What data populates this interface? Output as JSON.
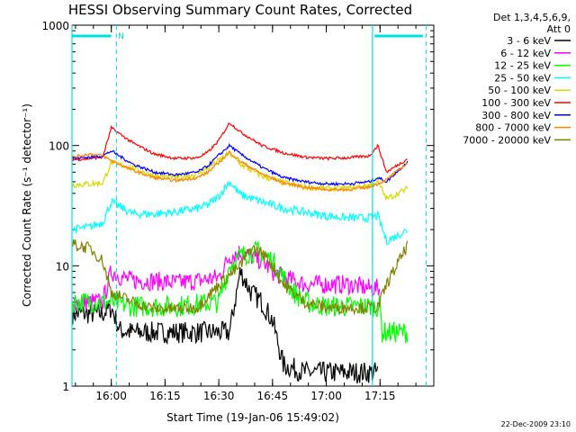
{
  "chart_data": {
    "type": "line",
    "title": "HESSI Observing Summary Count Rates, Corrected",
    "xlabel": "Start Time (19-Jan-06 15:49:02)",
    "ylabel": "Corrected Count Rate (s⁻¹ detector⁻¹)",
    "y_scale": "log",
    "ylim": [
      1,
      1000
    ],
    "y_ticks": [
      1,
      10,
      100,
      1000
    ],
    "y_tick_labels": [
      "1",
      "10",
      "100",
      "1000"
    ],
    "xlim": [
      15.8172,
      17.5
    ],
    "x_ticks": [
      16.0,
      16.25,
      16.5,
      16.75,
      17.0,
      17.25
    ],
    "x_tick_labels": [
      "16:00",
      "16:15",
      "16:30",
      "16:45",
      "17:00",
      "17:15"
    ],
    "legend_header": [
      "Det 1,3,4,5,6,9,",
      "Att 0"
    ],
    "legend_position": "right",
    "series": [
      {
        "name": "3 - 6 keV",
        "color": "#000000",
        "x": [
          15.82,
          15.96,
          16.0,
          16.04,
          16.1,
          16.2,
          16.3,
          16.45,
          16.55,
          16.6,
          16.65,
          16.7,
          16.75,
          16.8,
          16.9,
          16.95,
          17.0,
          17.1,
          17.2,
          17.24
        ],
        "y": [
          4.0,
          4.0,
          4.5,
          2.9,
          2.8,
          2.8,
          2.8,
          2.8,
          2.8,
          9.0,
          6.0,
          5.0,
          3.5,
          1.5,
          1.3,
          1.3,
          1.3,
          1.3,
          1.3,
          1.3
        ]
      },
      {
        "name": "6 - 12 keV",
        "color": "#ff00ff",
        "x": [
          15.82,
          15.96,
          16.0,
          16.05,
          16.1,
          16.2,
          16.3,
          16.4,
          16.5,
          16.55,
          16.6,
          16.65,
          16.7,
          16.75,
          16.8,
          16.85,
          16.9,
          16.95,
          17.0,
          17.1,
          17.2,
          17.25
        ],
        "y": [
          5.0,
          5.0,
          9.0,
          8.0,
          7.5,
          7.5,
          7.2,
          7.5,
          8.0,
          12.0,
          13.0,
          12.0,
          11.0,
          9.0,
          8.0,
          7.5,
          7.0,
          7.0,
          7.0,
          7.0,
          6.5,
          6.5
        ]
      },
      {
        "name": "12 - 25 keV",
        "color": "#00ff00",
        "x": [
          15.82,
          15.96,
          16.0,
          16.1,
          16.2,
          16.3,
          16.4,
          16.5,
          16.55,
          16.6,
          16.65,
          16.7,
          16.75,
          16.8,
          16.85,
          16.9,
          17.0,
          17.1,
          17.2,
          17.25,
          17.26,
          17.38
        ],
        "y": [
          5.0,
          5.0,
          5.0,
          4.6,
          4.6,
          4.6,
          4.8,
          5.0,
          10.0,
          12.0,
          13.0,
          13.0,
          11.0,
          8.0,
          6.0,
          5.0,
          4.6,
          4.6,
          4.6,
          4.6,
          2.8,
          2.8
        ]
      },
      {
        "name": "25 - 50 keV",
        "color": "#00ffff",
        "x": [
          15.82,
          15.9,
          15.96,
          16.0,
          16.1,
          16.2,
          16.3,
          16.4,
          16.45,
          16.5,
          16.55,
          16.6,
          16.7,
          16.8,
          16.9,
          17.0,
          17.1,
          17.2,
          17.24,
          17.28,
          17.38
        ],
        "y": [
          20,
          21,
          23,
          34,
          27,
          27,
          28,
          30,
          32,
          38,
          50,
          39,
          34,
          30,
          28,
          26,
          25,
          25,
          26,
          16,
          20
        ]
      },
      {
        "name": "50 - 100 keV",
        "color": "#d8d800",
        "x": [
          15.82,
          15.9,
          15.96,
          16.0,
          16.1,
          16.2,
          16.3,
          16.4,
          16.45,
          16.5,
          16.55,
          16.6,
          16.7,
          16.8,
          16.9,
          17.0,
          17.1,
          17.2,
          17.24,
          17.28,
          17.38
        ],
        "y": [
          47,
          48,
          49,
          72,
          65,
          56,
          54,
          58,
          65,
          75,
          86,
          70,
          56,
          49,
          45,
          44,
          44,
          47,
          50,
          36,
          44
        ]
      },
      {
        "name": "100 - 300 keV",
        "color": "#ff0000",
        "x": [
          15.82,
          15.9,
          15.96,
          16.0,
          16.1,
          16.2,
          16.3,
          16.4,
          16.45,
          16.5,
          16.55,
          16.6,
          16.7,
          16.8,
          16.9,
          17.0,
          17.1,
          17.2,
          17.24,
          17.28,
          17.38
        ],
        "y": [
          76,
          78,
          80,
          140,
          105,
          85,
          78,
          79,
          88,
          110,
          155,
          130,
          100,
          87,
          80,
          78,
          79,
          82,
          100,
          60,
          78
        ]
      },
      {
        "name": "300 - 800 keV",
        "color": "#0000ff",
        "x": [
          15.82,
          15.9,
          15.96,
          16.0,
          16.1,
          16.2,
          16.3,
          16.4,
          16.45,
          16.5,
          16.55,
          16.6,
          16.7,
          16.8,
          16.9,
          17.0,
          17.1,
          17.2,
          17.24,
          17.28,
          17.38
        ],
        "y": [
          78,
          80,
          82,
          90,
          70,
          60,
          57,
          60,
          68,
          83,
          100,
          85,
          66,
          54,
          50,
          48,
          48,
          50,
          54,
          50,
          74
        ]
      },
      {
        "name": "800 - 7000 keV",
        "color": "#ff8000",
        "x": [
          15.82,
          15.9,
          15.96,
          16.0,
          16.1,
          16.2,
          16.3,
          16.4,
          16.45,
          16.5,
          16.55,
          16.6,
          16.7,
          16.8,
          16.9,
          17.0,
          17.1,
          17.2,
          17.24,
          17.28,
          17.38
        ],
        "y": [
          80,
          85,
          82,
          75,
          62,
          54,
          51,
          54,
          60,
          72,
          88,
          74,
          58,
          49,
          45,
          43,
          43,
          45,
          48,
          52,
          72
        ]
      },
      {
        "name": "7000 - 20000 keV",
        "color": "#808000",
        "x": [
          15.82,
          15.9,
          15.96,
          16.0,
          16.1,
          16.2,
          16.3,
          16.4,
          16.5,
          16.6,
          16.65,
          16.7,
          16.75,
          16.8,
          16.9,
          17.0,
          17.1,
          17.2,
          17.24,
          17.28,
          17.38
        ],
        "y": [
          15,
          14,
          11,
          6,
          5,
          4.4,
          4.4,
          4.5,
          7,
          10,
          14,
          13,
          10,
          7,
          5,
          4.5,
          4.5,
          4.5,
          4.5,
          7,
          15
        ]
      }
    ],
    "shaded_intervals_note": "Attenuator/night intervals drawn as cyan bars",
    "cyan_solid_x": [
      15.8172,
      17.215
    ],
    "cyan_dashed_x": [
      16.024,
      17.465
    ],
    "cyan_bar_top": [
      [
        15.8172,
        16.0
      ],
      [
        17.225,
        17.45
      ]
    ],
    "marker_N": "N",
    "marker_N_x": 16.045,
    "timestamp": "22-Dec-2009 23:10"
  }
}
